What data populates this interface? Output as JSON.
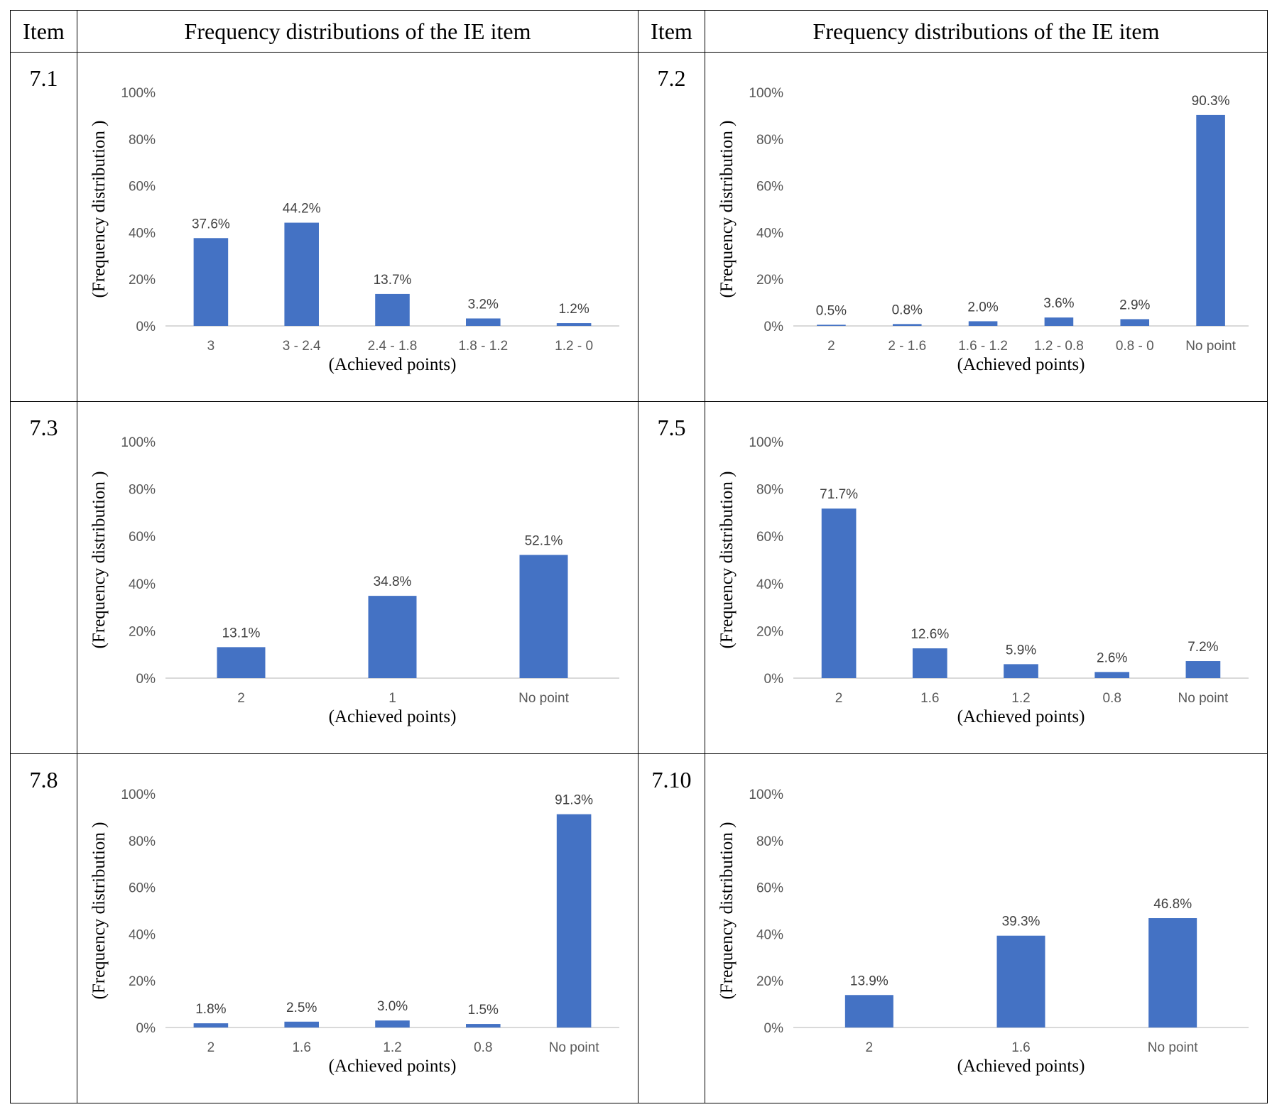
{
  "table": {
    "header": {
      "item_label_left": "Item",
      "title_left": "Frequency distributions of the IE item",
      "item_label_right": "Item",
      "title_right": "Frequency distributions of the IE item"
    },
    "items": [
      "7.1",
      "7.2",
      "7.3",
      "7.5",
      "7.8",
      "7.10"
    ]
  },
  "colors": {
    "bar": "#4472C4",
    "axis": "#D9D9D9"
  },
  "chart_data": [
    {
      "item": "7.1",
      "type": "bar",
      "categories": [
        "3",
        "3 - 2.4",
        "2.4 - 1.8",
        "1.8 - 1.2",
        "1.2 - 0"
      ],
      "values": [
        37.6,
        44.2,
        13.7,
        3.2,
        1.2
      ],
      "value_labels": [
        "37.6%",
        "44.2%",
        "13.7%",
        "3.2%",
        "1.2%"
      ],
      "xlabel": "(Achieved points)",
      "ylabel": "(Frequency distribution )",
      "yticks": [
        "0%",
        "20%",
        "40%",
        "60%",
        "80%",
        "100%"
      ],
      "ylim": [
        0,
        100
      ],
      "grid": false
    },
    {
      "item": "7.2",
      "type": "bar",
      "categories": [
        "2",
        "2 - 1.6",
        "1.6 - 1.2",
        "1.2 - 0.8",
        "0.8 - 0",
        "No point"
      ],
      "values": [
        0.5,
        0.8,
        2.0,
        3.6,
        2.9,
        90.3
      ],
      "value_labels": [
        "0.5%",
        "0.8%",
        "2.0%",
        "3.6%",
        "2.9%",
        "90.3%"
      ],
      "xlabel": "(Achieved points)",
      "ylabel": "(Frequency distribution )",
      "yticks": [
        "0%",
        "20%",
        "40%",
        "60%",
        "80%",
        "100%"
      ],
      "ylim": [
        0,
        100
      ],
      "grid": false
    },
    {
      "item": "7.3",
      "type": "bar",
      "categories": [
        "2",
        "1",
        "No point"
      ],
      "values": [
        13.1,
        34.8,
        52.1
      ],
      "value_labels": [
        "13.1%",
        "34.8%",
        "52.1%"
      ],
      "xlabel": "(Achieved points)",
      "ylabel": "(Frequency distribution )",
      "yticks": [
        "0%",
        "20%",
        "40%",
        "60%",
        "80%",
        "100%"
      ],
      "ylim": [
        0,
        100
      ],
      "grid": false
    },
    {
      "item": "7.5",
      "type": "bar",
      "categories": [
        "2",
        "1.6",
        "1.2",
        "0.8",
        "No point"
      ],
      "values": [
        71.7,
        12.6,
        5.9,
        2.6,
        7.2
      ],
      "value_labels": [
        "71.7%",
        "12.6%",
        "5.9%",
        "2.6%",
        "7.2%"
      ],
      "xlabel": "(Achieved points)",
      "ylabel": "(Frequency distribution )",
      "yticks": [
        "0%",
        "20%",
        "40%",
        "60%",
        "80%",
        "100%"
      ],
      "ylim": [
        0,
        100
      ],
      "grid": false
    },
    {
      "item": "7.8",
      "type": "bar",
      "categories": [
        "2",
        "1.6",
        "1.2",
        "0.8",
        "No point"
      ],
      "values": [
        1.8,
        2.5,
        3.0,
        1.5,
        91.3
      ],
      "value_labels": [
        "1.8%",
        "2.5%",
        "3.0%",
        "1.5%",
        "91.3%"
      ],
      "xlabel": "(Achieved points)",
      "ylabel": "(Frequency distribution )",
      "yticks": [
        "0%",
        "20%",
        "40%",
        "60%",
        "80%",
        "100%"
      ],
      "ylim": [
        0,
        100
      ],
      "grid": false
    },
    {
      "item": "7.10",
      "type": "bar",
      "categories": [
        "2",
        "1.6",
        "No point"
      ],
      "values": [
        13.9,
        39.3,
        46.8
      ],
      "value_labels": [
        "13.9%",
        "39.3%",
        "46.8%"
      ],
      "xlabel": "(Achieved points)",
      "ylabel": "(Frequency distribution )",
      "yticks": [
        "0%",
        "20%",
        "40%",
        "60%",
        "80%",
        "100%"
      ],
      "ylim": [
        0,
        100
      ],
      "grid": false
    }
  ]
}
